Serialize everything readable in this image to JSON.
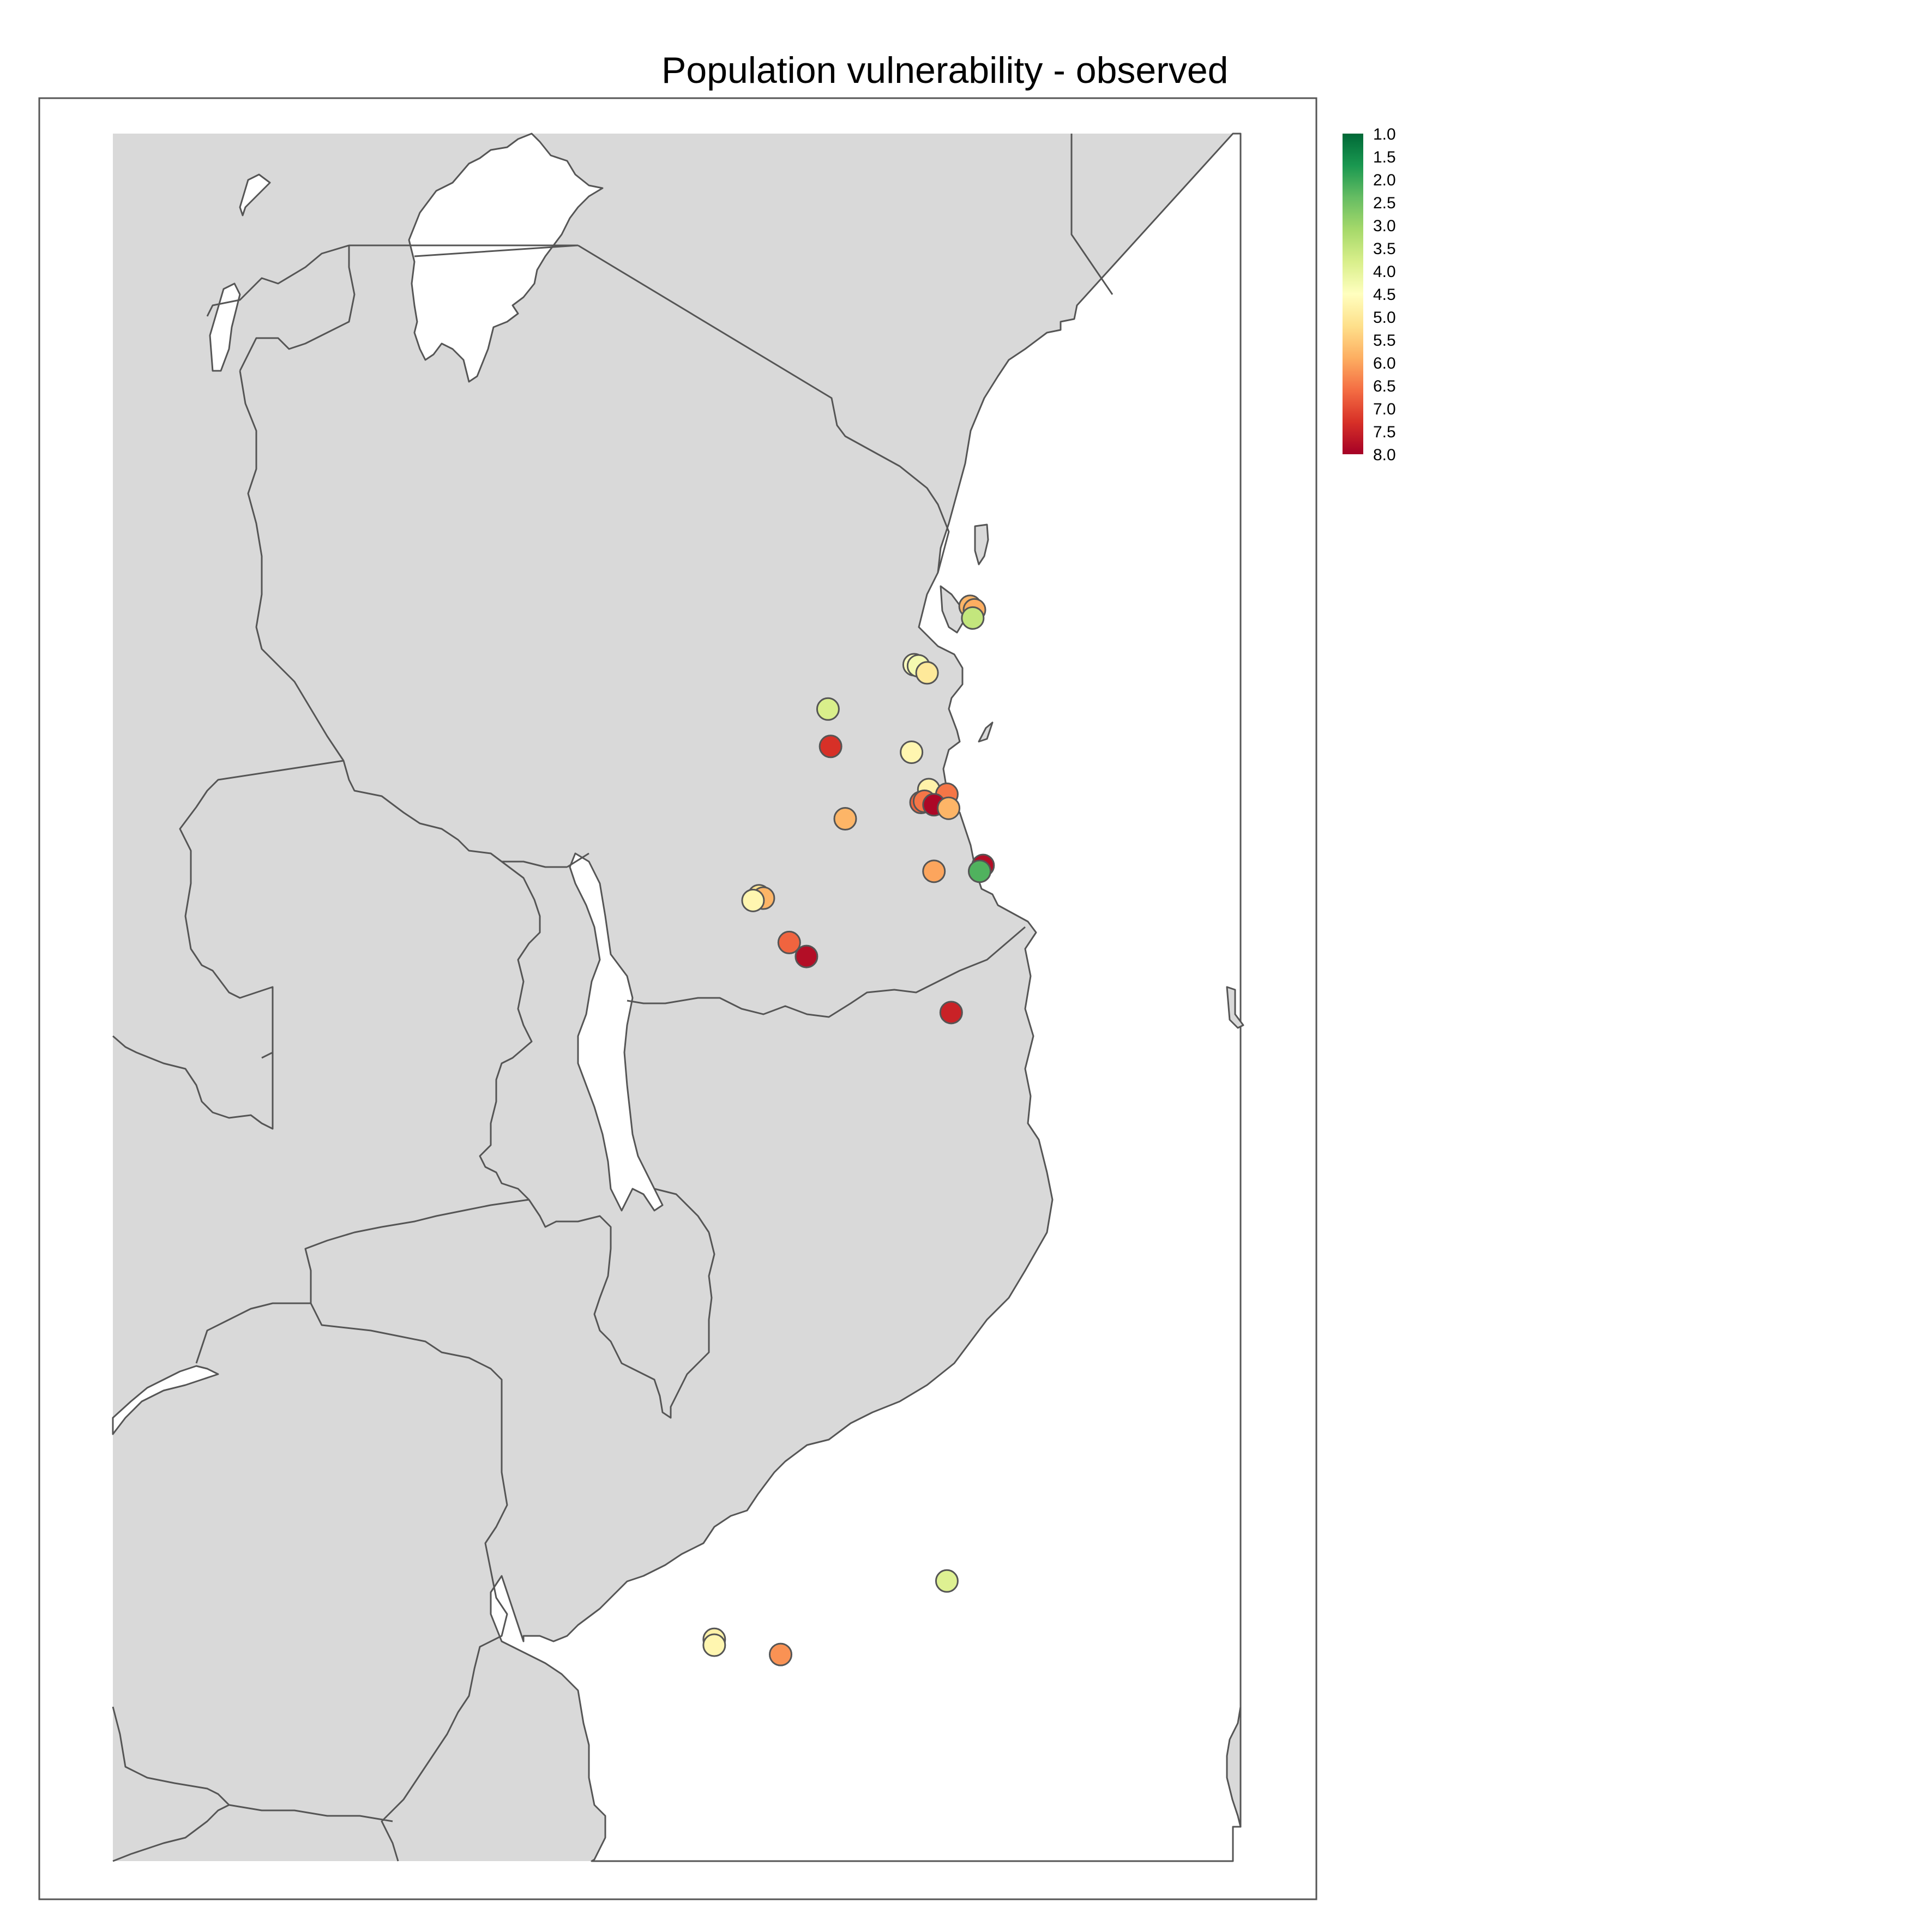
{
  "title": "Population vulnerability - observed",
  "legend": {
    "labels": [
      "1.0",
      "1.5",
      "2.0",
      "2.5",
      "3.0",
      "3.5",
      "4.0",
      "4.5",
      "5.0",
      "5.5",
      "6.0",
      "6.5",
      "7.0",
      "7.5",
      "8.0"
    ],
    "colors": [
      "#006837",
      "#1a9850",
      "#66bd63",
      "#a6d96a",
      "#d9ef8b",
      "#ffffbf",
      "#fee08b",
      "#fdae61",
      "#f46d43",
      "#d73027",
      "#a50026"
    ],
    "min": 1.0,
    "max": 8.0
  },
  "chart_data": {
    "type": "scatter",
    "title": "Population vulnerability - observed",
    "value_range": [
      1.0,
      8.0
    ],
    "x_label": "",
    "y_label": "",
    "points": [
      {
        "lon": 38.95,
        "lat": -5.05,
        "value": 5.8
      },
      {
        "lon": 39.0,
        "lat": -5.08,
        "value": 5.9
      },
      {
        "lon": 38.98,
        "lat": -5.15,
        "value": 3.5
      },
      {
        "lon": 38.3,
        "lat": -5.55,
        "value": 4.5
      },
      {
        "lon": 38.35,
        "lat": -5.56,
        "value": 4.3
      },
      {
        "lon": 38.45,
        "lat": -5.62,
        "value": 5.0
      },
      {
        "lon": 37.3,
        "lat": -5.93,
        "value": 3.8
      },
      {
        "lon": 37.33,
        "lat": -6.25,
        "value": 7.3
      },
      {
        "lon": 38.27,
        "lat": -6.3,
        "value": 4.7
      },
      {
        "lon": 38.47,
        "lat": -6.62,
        "value": 4.8
      },
      {
        "lon": 38.68,
        "lat": -6.66,
        "value": 6.5
      },
      {
        "lon": 38.38,
        "lat": -6.73,
        "value": 6.7
      },
      {
        "lon": 38.42,
        "lat": -6.72,
        "value": 6.5
      },
      {
        "lon": 38.53,
        "lat": -6.75,
        "value": 7.9
      },
      {
        "lon": 38.7,
        "lat": -6.78,
        "value": 5.8
      },
      {
        "lon": 37.5,
        "lat": -6.87,
        "value": 5.8
      },
      {
        "lon": 39.1,
        "lat": -7.27,
        "value": 7.8
      },
      {
        "lon": 39.06,
        "lat": -7.32,
        "value": 2.2
      },
      {
        "lon": 38.53,
        "lat": -7.32,
        "value": 6.0
      },
      {
        "lon": 36.5,
        "lat": -7.53,
        "value": 5.1
      },
      {
        "lon": 36.55,
        "lat": -7.55,
        "value": 5.8
      },
      {
        "lon": 36.43,
        "lat": -7.57,
        "value": 4.7
      },
      {
        "lon": 36.85,
        "lat": -7.93,
        "value": 6.7
      },
      {
        "lon": 37.05,
        "lat": -8.05,
        "value": 7.8
      },
      {
        "lon": 38.73,
        "lat": -8.53,
        "value": 7.5
      },
      {
        "lon": 38.68,
        "lat": -13.4,
        "value": 3.9
      },
      {
        "lon": 35.98,
        "lat": -13.9,
        "value": 4.8
      },
      {
        "lon": 35.98,
        "lat": -13.95,
        "value": 4.7
      },
      {
        "lon": 36.75,
        "lat": -14.03,
        "value": 6.2
      }
    ]
  },
  "map": {
    "lon_range": [
      29.0,
      42.0
    ],
    "lat_range": [
      -1.0,
      -15.8
    ]
  }
}
